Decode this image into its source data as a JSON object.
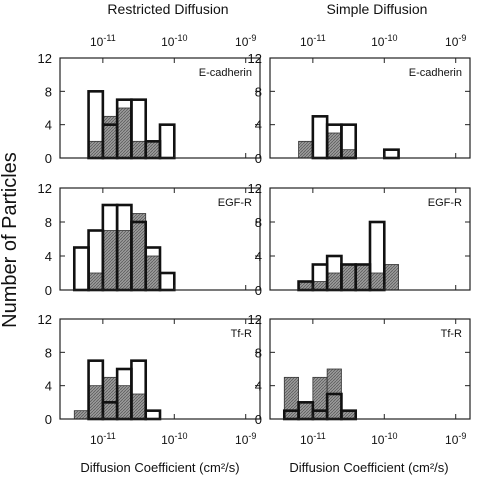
{
  "figure": {
    "column_titles": [
      "Restricted Diffusion",
      "Simple Diffusion"
    ],
    "ylabel": "Number of Particles",
    "xlabels": [
      "Diffusion Coefficient (cm²/s)",
      "Diffusion Coefficient (cm²/s)"
    ],
    "log_ticks": [
      {
        "exp": -11,
        "base": "10",
        "sup": "-11"
      },
      {
        "exp": -10,
        "base": "10",
        "sup": "-10"
      },
      {
        "exp": -9,
        "base": "10",
        "sup": "-9"
      }
    ],
    "colors": {
      "hatched_fill": "#8c8c8c",
      "open_outline": "#111111",
      "frame": "#222222"
    }
  },
  "chart_data": [
    {
      "type": "bar",
      "column": "Restricted Diffusion",
      "label": "E-cadherin",
      "x_scale": "log10",
      "bin_edges_log10": [
        -11.4,
        -11.2,
        -11.0,
        -10.8,
        -10.6,
        -10.4,
        -10.2,
        -10.0,
        -9.8,
        -9.6,
        -9.4,
        -9.2,
        -9.0
      ],
      "ylim": [
        0,
        12
      ],
      "yticks": [
        0,
        4,
        8,
        12
      ],
      "hatched_counts": [
        0,
        2,
        5,
        6,
        2,
        2,
        0,
        0,
        0,
        0,
        0,
        0
      ],
      "open_counts": [
        0,
        8,
        4,
        7,
        7,
        2,
        4,
        0,
        0,
        0,
        0,
        0
      ]
    },
    {
      "type": "bar",
      "column": "Simple Diffusion",
      "label": "E-cadherin",
      "x_scale": "log10",
      "bin_edges_log10": [
        -11.4,
        -11.2,
        -11.0,
        -10.8,
        -10.6,
        -10.4,
        -10.2,
        -10.0,
        -9.8,
        -9.6,
        -9.4,
        -9.2,
        -9.0
      ],
      "ylim": [
        0,
        12
      ],
      "yticks": [
        0,
        4,
        8,
        12
      ],
      "hatched_counts": [
        0,
        2,
        0,
        3,
        1,
        0,
        0,
        0,
        0,
        0,
        0,
        0
      ],
      "open_counts": [
        0,
        0,
        5,
        4,
        4,
        0,
        0,
        1,
        0,
        0,
        0,
        0
      ]
    },
    {
      "type": "bar",
      "column": "Restricted Diffusion",
      "label": "EGF-R",
      "x_scale": "log10",
      "bin_edges_log10": [
        -11.4,
        -11.2,
        -11.0,
        -10.8,
        -10.6,
        -10.4,
        -10.2,
        -10.0,
        -9.8,
        -9.6,
        -9.4,
        -9.2,
        -9.0
      ],
      "ylim": [
        0,
        12
      ],
      "yticks": [
        0,
        4,
        8,
        12
      ],
      "hatched_counts": [
        0,
        2,
        7,
        7,
        9,
        4,
        0,
        0,
        0,
        0,
        0,
        0
      ],
      "open_counts": [
        5,
        7,
        10,
        10,
        8,
        5,
        2,
        0,
        0,
        0,
        0,
        0
      ]
    },
    {
      "type": "bar",
      "column": "Simple Diffusion",
      "label": "EGF-R",
      "x_scale": "log10",
      "bin_edges_log10": [
        -11.4,
        -11.2,
        -11.0,
        -10.8,
        -10.6,
        -10.4,
        -10.2,
        -10.0,
        -9.8,
        -9.6,
        -9.4,
        -9.2,
        -9.0
      ],
      "ylim": [
        0,
        12
      ],
      "yticks": [
        0,
        4,
        8,
        12
      ],
      "hatched_counts": [
        0,
        1,
        1,
        2,
        3,
        3,
        2,
        3,
        0,
        0,
        0,
        0
      ],
      "open_counts": [
        0,
        1,
        3,
        4,
        3,
        3,
        8,
        0,
        0,
        0,
        0,
        0
      ]
    },
    {
      "type": "bar",
      "column": "Restricted Diffusion",
      "label": "Tf-R",
      "x_scale": "log10",
      "bin_edges_log10": [
        -11.4,
        -11.2,
        -11.0,
        -10.8,
        -10.6,
        -10.4,
        -10.2,
        -10.0,
        -9.8,
        -9.6,
        -9.4,
        -9.2,
        -9.0
      ],
      "ylim": [
        0,
        12
      ],
      "yticks": [
        0,
        4,
        8,
        12
      ],
      "hatched_counts": [
        1,
        4,
        5,
        4,
        3,
        0,
        0,
        0,
        0,
        0,
        0,
        0
      ],
      "open_counts": [
        0,
        7,
        2,
        6,
        7,
        1,
        0,
        0,
        0,
        0,
        0,
        0
      ]
    },
    {
      "type": "bar",
      "column": "Simple Diffusion",
      "label": "Tf-R",
      "x_scale": "log10",
      "bin_edges_log10": [
        -11.4,
        -11.2,
        -11.0,
        -10.8,
        -10.6,
        -10.4,
        -10.2,
        -10.0,
        -9.8,
        -9.6,
        -9.4,
        -9.2,
        -9.0
      ],
      "ylim": [
        0,
        12
      ],
      "yticks": [
        0,
        4,
        8,
        12
      ],
      "hatched_counts": [
        5,
        2,
        5,
        6,
        1,
        0,
        0,
        0,
        0,
        0,
        0,
        0
      ],
      "open_counts": [
        1,
        2,
        1,
        3,
        1,
        0,
        0,
        0,
        0,
        0,
        0,
        0
      ]
    }
  ]
}
